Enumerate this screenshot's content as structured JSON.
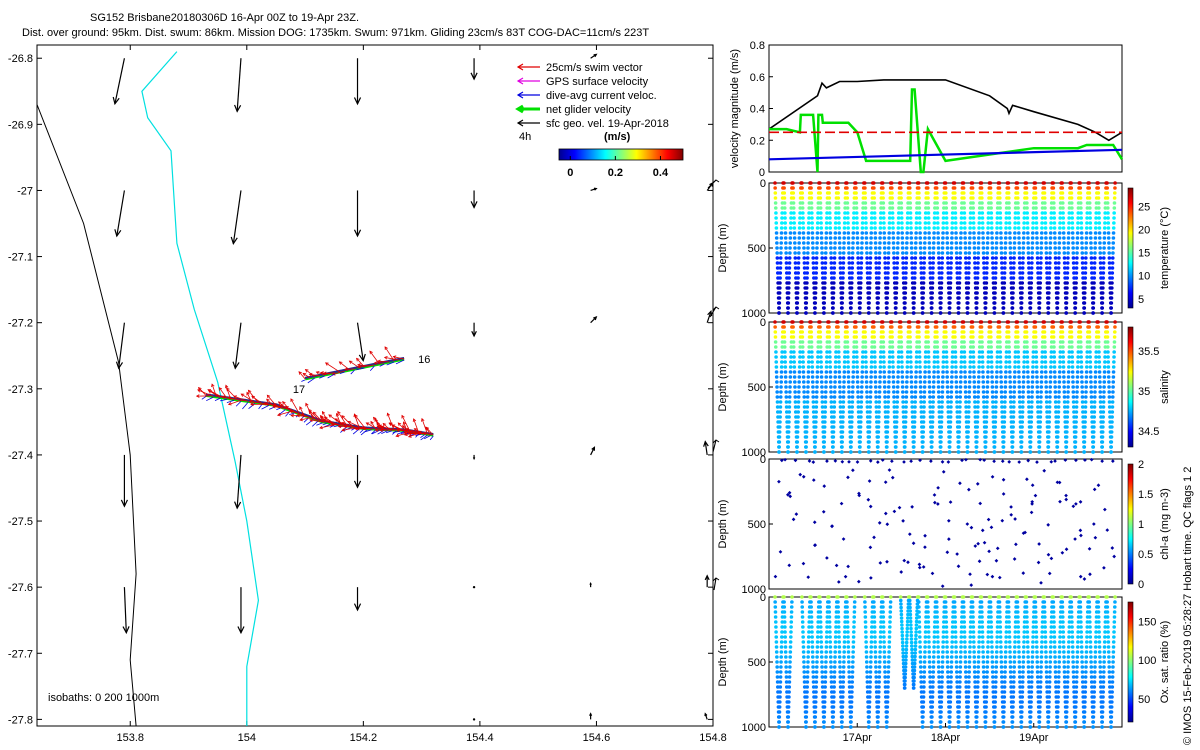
{
  "title": {
    "line1": "SG152 Brisbane20180306D 16-Apr 00Z to 19-Apr 23Z.",
    "line2": "Dist. over ground: 95km. Dist. swum: 86km. Mission DOG: 1735km. Swum: 971km. Gliding 23cm/s 83T COG-DAC=11cm/s 223T"
  },
  "credit": "© IMOS 15-Feb-2019 05:28:27 Hobart time. QC flags 1  2",
  "colors": {
    "swim": "#e00000",
    "gps": "#e000e0",
    "dac": "#0000e0",
    "net": "#00e000",
    "cyan": "#00e0e0",
    "red_dash": "#e00000"
  },
  "chart_data": [
    {
      "type": "line",
      "name": "map",
      "xlim": [
        153.64,
        154.8
      ],
      "ylim": [
        -27.81,
        -26.78
      ],
      "xticks": [
        "153.8",
        "154",
        "154.2",
        "154.4",
        "154.6",
        "154.8"
      ],
      "xtick_values": [
        153.8,
        154,
        154.2,
        154.4,
        154.6,
        154.8
      ],
      "yticks": [
        "-26.8",
        "-26.9",
        "-27",
        "-27.1",
        "-27.2",
        "-27.3",
        "-27.4",
        "-27.5",
        "-27.6",
        "-27.7",
        "-27.8"
      ],
      "ytick_values": [
        -26.8,
        -26.9,
        -27,
        -27.1,
        -27.2,
        -27.3,
        -27.4,
        -27.5,
        -27.6,
        -27.7,
        -27.8
      ],
      "legend": [
        {
          "label": "25cm/s swim vector",
          "color": "#e00000"
        },
        {
          "label": "GPS surface velocity",
          "color": "#e000e0"
        },
        {
          "label": "dive-avg current veloc.",
          "color": "#0000e0"
        },
        {
          "label": "net glider velocity",
          "color": "#00e000"
        },
        {
          "label": "sfc geo. vel. 19-Apr-2018",
          "color": "#000000"
        }
      ],
      "legend_note": "4h",
      "colorbar": {
        "label": "(m/s)",
        "ticks": [
          "0",
          "0.2",
          "0.4"
        ],
        "tick_values": [
          0,
          0.2,
          0.4
        ],
        "range": [
          -0.05,
          0.5
        ]
      },
      "isobath_note": "isobaths: 0   200  1000m",
      "day_labels": [
        {
          "text": "16",
          "lon": 154.27,
          "lat": -27.255
        },
        {
          "text": "17",
          "lon": 154.055,
          "lat": -27.3
        }
      ],
      "isobath_1000": [
        [
          153.64,
          -26.87
        ],
        [
          153.72,
          -27.05
        ],
        [
          153.78,
          -27.26
        ],
        [
          153.8,
          -27.4
        ],
        [
          153.81,
          -27.58
        ],
        [
          153.8,
          -27.71
        ],
        [
          153.81,
          -27.81
        ]
      ],
      "isobath_200": [
        [
          153.88,
          -26.79
        ],
        [
          153.82,
          -26.85
        ],
        [
          153.83,
          -26.89
        ],
        [
          153.87,
          -26.94
        ],
        [
          153.88,
          -27.08
        ],
        [
          153.91,
          -27.18
        ],
        [
          153.95,
          -27.29
        ],
        [
          153.98,
          -27.41
        ],
        [
          154.0,
          -27.5
        ],
        [
          154.02,
          -27.62
        ],
        [
          154.0,
          -27.72
        ],
        [
          154.0,
          -27.81
        ]
      ],
      "track_out": [
        [
          154.27,
          -27.255
        ],
        [
          154.1,
          -27.285
        ]
      ],
      "track_main": [
        [
          153.93,
          -27.31
        ],
        [
          154.05,
          -27.325
        ],
        [
          154.13,
          -27.35
        ],
        [
          154.2,
          -27.36
        ],
        [
          154.27,
          -27.363
        ],
        [
          154.32,
          -27.37
        ]
      ],
      "geo_arrows": [
        {
          "lon": 153.79,
          "lat": -26.8,
          "u": -0.05,
          "v": -0.24
        },
        {
          "lon": 153.99,
          "lat": -26.8,
          "u": -0.02,
          "v": -0.28
        },
        {
          "lon": 154.19,
          "lat": -26.8,
          "u": 0.0,
          "v": -0.24
        },
        {
          "lon": 154.39,
          "lat": -26.8,
          "u": 0.0,
          "v": -0.11
        },
        {
          "lon": 154.59,
          "lat": -26.8,
          "u": 0.03,
          "v": 0.02
        },
        {
          "lon": 153.79,
          "lat": -27.0,
          "u": -0.04,
          "v": -0.24
        },
        {
          "lon": 153.99,
          "lat": -27.0,
          "u": -0.04,
          "v": -0.28
        },
        {
          "lon": 154.19,
          "lat": -27.0,
          "u": 0.0,
          "v": -0.24
        },
        {
          "lon": 154.39,
          "lat": -27.0,
          "u": 0.0,
          "v": -0.09
        },
        {
          "lon": 154.59,
          "lat": -27.0,
          "u": 0.03,
          "v": 0.01
        },
        {
          "lon": 154.79,
          "lat": -27.0,
          "u": 0.03,
          "v": 0.04
        },
        {
          "lon": 153.79,
          "lat": -27.2,
          "u": -0.03,
          "v": -0.24
        },
        {
          "lon": 153.99,
          "lat": -27.2,
          "u": -0.03,
          "v": -0.24
        },
        {
          "lon": 154.19,
          "lat": -27.2,
          "u": 0.03,
          "v": -0.2
        },
        {
          "lon": 154.39,
          "lat": -27.2,
          "u": 0.0,
          "v": -0.07
        },
        {
          "lon": 154.59,
          "lat": -27.2,
          "u": 0.03,
          "v": 0.03
        },
        {
          "lon": 154.79,
          "lat": -27.2,
          "u": 0.02,
          "v": 0.06
        },
        {
          "lon": 153.79,
          "lat": -27.4,
          "u": 0.0,
          "v": -0.27
        },
        {
          "lon": 153.99,
          "lat": -27.4,
          "u": -0.02,
          "v": -0.28
        },
        {
          "lon": 154.19,
          "lat": -27.4,
          "u": 0.0,
          "v": -0.17
        },
        {
          "lon": 154.39,
          "lat": -27.4,
          "u": 0.0,
          "v": -0.02
        },
        {
          "lon": 154.59,
          "lat": -27.4,
          "u": 0.02,
          "v": 0.04
        },
        {
          "lon": 154.79,
          "lat": -27.4,
          "u": -0.01,
          "v": 0.07
        },
        {
          "lon": 153.79,
          "lat": -27.6,
          "u": 0.01,
          "v": -0.24
        },
        {
          "lon": 153.99,
          "lat": -27.6,
          "u": 0.0,
          "v": -0.24
        },
        {
          "lon": 154.19,
          "lat": -27.6,
          "u": 0.0,
          "v": -0.12
        },
        {
          "lon": 154.39,
          "lat": -27.6,
          "u": 0.0,
          "v": 0.0
        },
        {
          "lon": 154.59,
          "lat": -27.6,
          "u": 0.0,
          "v": 0.02
        },
        {
          "lon": 154.79,
          "lat": -27.6,
          "u": 0.0,
          "v": 0.06
        },
        {
          "lon": 154.39,
          "lat": -27.8,
          "u": 0.0,
          "v": 0.0
        },
        {
          "lon": 154.59,
          "lat": -27.8,
          "u": 0.0,
          "v": 0.03
        },
        {
          "lon": 154.79,
          "lat": -27.8,
          "u": -0.01,
          "v": 0.03
        }
      ]
    },
    {
      "type": "line",
      "name": "velocity",
      "ylabel": "velocity magnitude (m/s)",
      "ylim": [
        0,
        0.8
      ],
      "yticks": [
        "0",
        "0.2",
        "0.4",
        "0.6",
        "0.8"
      ],
      "ytick_values": [
        0,
        0.2,
        0.4,
        0.6,
        0.8
      ],
      "xlim": [
        0,
        4
      ],
      "series": [
        {
          "name": "gps/sfc",
          "color": "#000000",
          "x": [
            0,
            0.55,
            0.6,
            0.65,
            0.8,
            1.0,
            1.3,
            1.6,
            2.0,
            2.5,
            2.7,
            2.72,
            2.76,
            3.0,
            3.5,
            3.7,
            3.85,
            4.0
          ],
          "y": [
            0.27,
            0.48,
            0.56,
            0.53,
            0.57,
            0.57,
            0.58,
            0.58,
            0.58,
            0.48,
            0.4,
            0.37,
            0.42,
            0.38,
            0.3,
            0.25,
            0.2,
            0.25
          ]
        },
        {
          "name": "net glider",
          "color": "#00e000",
          "x": [
            0,
            0.2,
            0.35,
            0.36,
            0.5,
            0.55,
            0.56,
            0.6,
            0.61,
            0.7,
            0.8,
            0.9,
            1.0,
            1.1,
            1.3,
            1.6,
            1.62,
            1.65,
            1.72,
            1.75,
            1.8,
            2.0,
            2.5,
            3.0,
            3.5,
            3.6,
            3.9,
            4.0
          ],
          "y": [
            0.27,
            0.27,
            0.25,
            0.36,
            0.36,
            0.0,
            0.36,
            0.36,
            0.31,
            0.31,
            0.31,
            0.31,
            0.25,
            0.07,
            0.07,
            0.07,
            0.52,
            0.52,
            0.0,
            0.0,
            0.27,
            0.07,
            0.11,
            0.15,
            0.15,
            0.17,
            0.17,
            0.08
          ]
        },
        {
          "name": "dive-avg current",
          "color": "#0000e0",
          "x": [
            0,
            4
          ],
          "y": [
            0.08,
            0.14
          ]
        },
        {
          "name": "25cm/s",
          "color": "#e00000",
          "dashed": true,
          "x": [
            0,
            4
          ],
          "y": [
            0.25,
            0.25
          ]
        }
      ]
    },
    {
      "type": "scatter",
      "name": "temperature",
      "ylabel": "temperature (°C)",
      "depth_label": "Depth (m)",
      "depth_ticks": [
        "0",
        "500",
        "1000"
      ],
      "depth_values": [
        0,
        500,
        1000
      ],
      "cbar_ticks": [
        "5",
        "10",
        "15",
        "20",
        "25"
      ],
      "cbar_values": [
        5,
        10,
        15,
        20,
        25
      ],
      "cbar_range": [
        3,
        29
      ],
      "profiles": 38,
      "surface_value": 27,
      "deep_value": 4
    },
    {
      "type": "scatter",
      "name": "salinity",
      "ylabel": "salinity",
      "depth_label": "Depth (m)",
      "depth_ticks": [
        "0",
        "500",
        "1000"
      ],
      "depth_values": [
        0,
        500,
        1000
      ],
      "cbar_ticks": [
        "34.5",
        "35",
        "35.5"
      ],
      "cbar_values": [
        34.5,
        35,
        35.5
      ],
      "cbar_range": [
        34.3,
        35.8
      ],
      "profiles": 38
    },
    {
      "type": "scatter",
      "name": "chl-a",
      "ylabel": "chl-a (mg m-3)",
      "depth_label": "Depth (m)",
      "depth_ticks": [
        "0",
        "500",
        "1000"
      ],
      "depth_values": [
        0,
        500,
        1000
      ],
      "cbar_ticks": [
        "0",
        "0.5",
        "1",
        "1.5",
        "2"
      ],
      "cbar_values": [
        0,
        0.5,
        1,
        1.5,
        2
      ],
      "cbar_range": [
        0,
        2
      ],
      "profiles": 38
    },
    {
      "type": "scatter",
      "name": "oxygen",
      "ylabel": "Ox. sat. ratio (%)",
      "depth_label": "Depth (m)",
      "depth_ticks": [
        "0",
        "500",
        "1000"
      ],
      "depth_values": [
        0,
        500,
        1000
      ],
      "cbar_ticks": [
        "50",
        "100",
        "150"
      ],
      "cbar_values": [
        50,
        100,
        150
      ],
      "cbar_range": [
        20,
        175
      ],
      "profiles": 38,
      "xticks": [
        "17Apr",
        "18Apr",
        "19Apr"
      ],
      "xtick_values": [
        1,
        2,
        3
      ]
    }
  ]
}
